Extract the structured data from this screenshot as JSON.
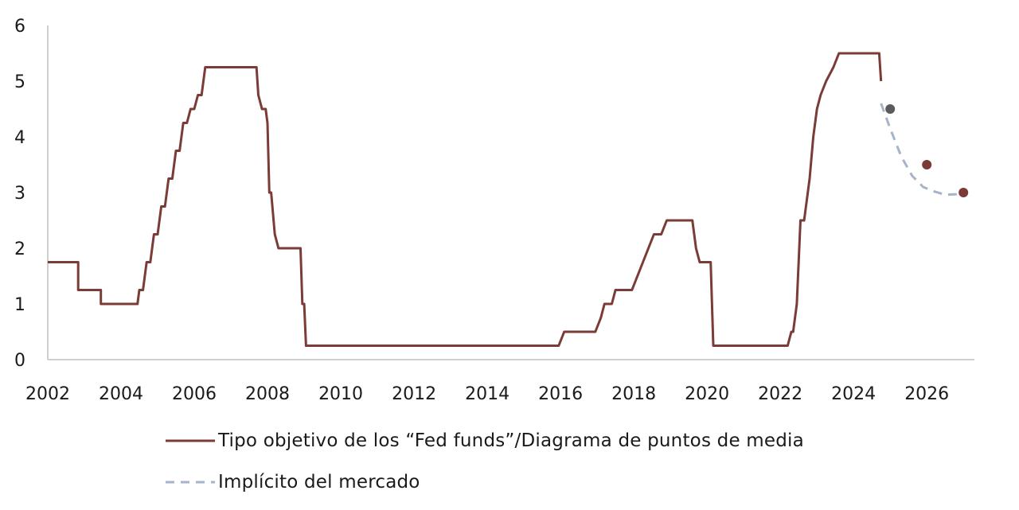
{
  "chart_data": {
    "type": "line",
    "xlim": [
      2002,
      2027.3
    ],
    "ylim": [
      0,
      6
    ],
    "x_ticks": [
      2002,
      2004,
      2006,
      2008,
      2010,
      2012,
      2014,
      2016,
      2018,
      2020,
      2022,
      2024,
      2026
    ],
    "x_tick_labels": [
      "2002",
      "2004",
      "2006",
      "2008",
      "2010",
      "2012",
      "2014",
      "2016",
      "2018",
      "2020",
      "2022",
      "2024",
      "2026"
    ],
    "y_ticks": [
      0,
      1,
      2,
      3,
      4,
      5,
      6
    ],
    "y_tick_labels": [
      "0",
      "1",
      "2",
      "3",
      "4",
      "5",
      "6"
    ],
    "grid": false,
    "legend_position": "bottom",
    "series": [
      {
        "name": "Tipo objetivo de los “Fed funds”/Diagrama de puntos de media",
        "style": "solid",
        "color": "#7b3b36",
        "x": [
          2002.0,
          2002.83,
          2002.83,
          2003.45,
          2003.45,
          2004.45,
          2004.5,
          2004.6,
          2004.7,
          2004.8,
          2004.9,
          2005.0,
          2005.1,
          2005.2,
          2005.3,
          2005.4,
          2005.5,
          2005.6,
          2005.7,
          2005.8,
          2005.9,
          2006.0,
          2006.1,
          2006.2,
          2006.3,
          2006.4,
          2006.5,
          2007.7,
          2007.75,
          2007.85,
          2007.95,
          2008.0,
          2008.05,
          2008.1,
          2008.2,
          2008.3,
          2008.9,
          2008.95,
          2009.0,
          2009.05,
          2015.95,
          2016.1,
          2016.95,
          2017.1,
          2017.2,
          2017.4,
          2017.5,
          2017.95,
          2018.1,
          2018.25,
          2018.4,
          2018.55,
          2018.75,
          2018.9,
          2019.6,
          2019.7,
          2019.8,
          2020.1,
          2020.17,
          2020.25,
          2022.2,
          2022.3,
          2022.35,
          2022.45,
          2022.55,
          2022.65,
          2022.8,
          2022.9,
          2023.0,
          2023.1,
          2023.25,
          2023.45,
          2023.6,
          2024.7,
          2024.75
        ],
        "y": [
          1.75,
          1.75,
          1.25,
          1.25,
          1.0,
          1.0,
          1.25,
          1.25,
          1.75,
          1.75,
          2.25,
          2.25,
          2.75,
          2.75,
          3.25,
          3.25,
          3.75,
          3.75,
          4.25,
          4.25,
          4.5,
          4.5,
          4.75,
          4.75,
          5.25,
          5.25,
          5.25,
          5.25,
          4.75,
          4.5,
          4.5,
          4.25,
          3.0,
          3.0,
          2.25,
          2.0,
          2.0,
          1.0,
          1.0,
          0.25,
          0.25,
          0.5,
          0.5,
          0.75,
          1.0,
          1.0,
          1.25,
          1.25,
          1.5,
          1.75,
          2.0,
          2.25,
          2.25,
          2.5,
          2.5,
          2.0,
          1.75,
          1.75,
          0.25,
          0.25,
          0.25,
          0.5,
          0.5,
          1.0,
          2.5,
          2.5,
          3.25,
          4.0,
          4.5,
          4.75,
          5.0,
          5.25,
          5.5,
          5.5,
          5.0
        ]
      },
      {
        "name": "Implícito del mercado",
        "style": "dashed",
        "color": "#a7b3c8",
        "x": [
          2024.75,
          2025.0,
          2025.3,
          2025.6,
          2025.9,
          2026.2,
          2026.5,
          2026.8,
          2026.95
        ],
        "y": [
          4.6,
          4.15,
          3.65,
          3.3,
          3.1,
          3.02,
          2.96,
          2.97,
          3.02
        ]
      }
    ],
    "points": [
      {
        "x": 2025.0,
        "y": 4.5,
        "color": "#5d5a5c"
      },
      {
        "x": 2026.0,
        "y": 3.5,
        "color": "#7b3b36"
      },
      {
        "x": 2027.0,
        "y": 3.0,
        "color": "#7b3b36"
      }
    ]
  }
}
